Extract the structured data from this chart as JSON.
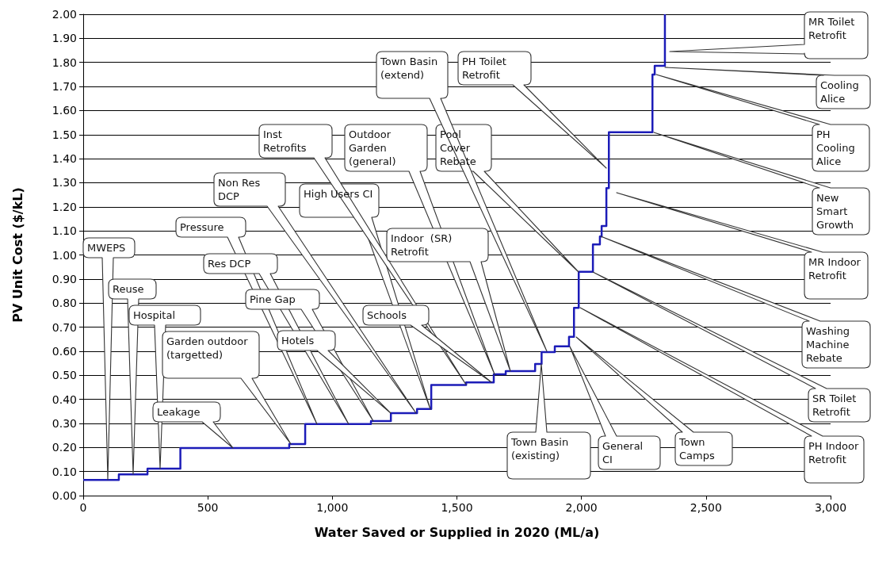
{
  "chart_data": {
    "type": "step",
    "xlabel": "Water Saved or Supplied in 2020 (ML/a)",
    "ylabel": "PV Unit Cost ($/kL)",
    "x": [
      0,
      143,
      258,
      390,
      827,
      891,
      1155,
      1235,
      1340,
      1397,
      1537,
      1648,
      1696,
      1814,
      1840,
      1893,
      1950,
      1970,
      1989,
      2046,
      2074,
      2081,
      2100,
      2110,
      2285,
      2294,
      2329,
      2335
    ],
    "series": [
      {
        "color": "#1c1cb8",
        "values": [
          0.065,
          0.088,
          0.112,
          0.198,
          0.214,
          0.297,
          0.31,
          0.343,
          0.36,
          0.46,
          0.47,
          0.504,
          0.517,
          0.547,
          0.596,
          0.62,
          0.66,
          0.78,
          0.93,
          1.044,
          1.077,
          1.12,
          1.278,
          1.51,
          1.75,
          1.786,
          1.786,
          2.0
        ]
      }
    ],
    "xlim": [
      0,
      3000
    ],
    "xticks": [
      0,
      500,
      {
        "value": 1000,
        "label": "1,000"
      },
      {
        "value": 1500,
        "label": "1,500"
      },
      {
        "value": 2000,
        "label": "2,000"
      },
      {
        "value": 2500,
        "label": "2,500"
      },
      {
        "value": 3000,
        "label": "3,000"
      }
    ],
    "ylim": [
      0,
      2
    ],
    "yticks": [
      {
        "value": 0,
        "label": "0.00"
      },
      {
        "value": 0.1,
        "label": "0.10"
      },
      {
        "value": 0.2,
        "label": "0.20"
      },
      {
        "value": 0.3,
        "label": "0.30"
      },
      {
        "value": 0.4,
        "label": "0.40"
      },
      {
        "value": 0.5,
        "label": "0.50"
      },
      {
        "value": 0.6,
        "label": "0.60"
      },
      {
        "value": 0.7,
        "label": "0.70"
      },
      {
        "value": 0.8,
        "label": "0.80"
      },
      {
        "value": 0.9,
        "label": "0.90"
      },
      {
        "value": 1,
        "label": "1.00"
      },
      {
        "value": 1.1,
        "label": "1.10"
      },
      {
        "value": 1.2,
        "label": "1.20"
      },
      {
        "value": 1.3,
        "label": "1.30"
      },
      {
        "value": 1.4,
        "label": "1.40"
      },
      {
        "value": 1.5,
        "label": "1.50"
      },
      {
        "value": 1.6,
        "label": "1.60"
      },
      {
        "value": 1.7,
        "label": "1.70"
      },
      {
        "value": 1.8,
        "label": "1.80"
      },
      {
        "value": 1.9,
        "label": "1.90"
      },
      {
        "value": 2,
        "label": "2.00"
      }
    ],
    "grid": "y",
    "marker": "none",
    "annotations": [
      "MWEPS",
      "Reuse",
      "Hospital",
      "Leakage",
      "Garden outdoor (targetted)",
      "Pressure",
      "Res DCP",
      "Pine Gap",
      "Hotels",
      "Non Res DCP",
      "High Users CI",
      "Inst Retrofits",
      "Schools",
      "Outdoor Garden (general)",
      "Indoor  (SR) Retrofit",
      "Town Basin (existing)",
      "Pool Cover Rebate",
      "Town Basin (extend)",
      "PH Toilet Retrofit",
      "General CI",
      "Town Camps",
      "PH Indoor Retrofit",
      "SR Toilet Retrofit",
      "Washing Machine Rebate",
      "MR Indoor Retrofit",
      "New Smart Growth",
      "PH Cooling Alice",
      "Cooling Alice",
      "MR Toilet Retrofit"
    ]
  }
}
